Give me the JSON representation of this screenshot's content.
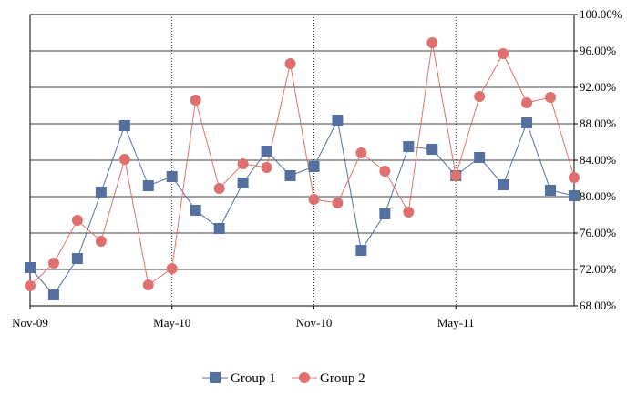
{
  "chart_data": {
    "type": "line",
    "title": "",
    "xlabel": "",
    "ylabel": "",
    "x_ticks": [
      "Nov-09",
      "May-10",
      "Nov-10",
      "May-11"
    ],
    "y_ticks": [
      "68.00%",
      "72.00%",
      "76.00%",
      "80.00%",
      "84.00%",
      "88.00%",
      "92.00%",
      "96.00%",
      "100.00%"
    ],
    "ylim": [
      68,
      100
    ],
    "y_axis_side": "right",
    "x": [
      "Nov-09",
      "Dec-09",
      "Jan-10",
      "Feb-10",
      "Mar-10",
      "Apr-10",
      "May-10",
      "Jun-10",
      "Jul-10",
      "Aug-10",
      "Sep-10",
      "Oct-10",
      "Nov-10",
      "Dec-10",
      "Jan-11",
      "Feb-11",
      "Mar-11",
      "Apr-11",
      "May-11",
      "Jun-11",
      "Jul-11",
      "Aug-11",
      "Sep-11",
      "Oct-11"
    ],
    "series": [
      {
        "name": "Group 1",
        "color": "#5470a0",
        "marker": "square",
        "values": [
          72.2,
          69.2,
          73.2,
          80.5,
          87.8,
          81.2,
          82.2,
          78.5,
          76.5,
          81.5,
          85.0,
          82.3,
          83.3,
          88.4,
          74.1,
          78.1,
          85.5,
          85.2,
          82.3,
          84.3,
          81.3,
          88.1,
          80.7,
          80.1
        ]
      },
      {
        "name": "Group 2",
        "color": "#e07070",
        "marker": "circle",
        "values": [
          70.2,
          72.7,
          77.4,
          75.1,
          84.1,
          70.3,
          72.1,
          90.6,
          80.9,
          83.6,
          83.2,
          94.6,
          79.7,
          79.3,
          84.8,
          82.8,
          78.3,
          96.9,
          82.3,
          91.0,
          95.7,
          90.3,
          90.9,
          82.1
        ]
      }
    ],
    "grid": true,
    "legend_position": "bottom"
  }
}
